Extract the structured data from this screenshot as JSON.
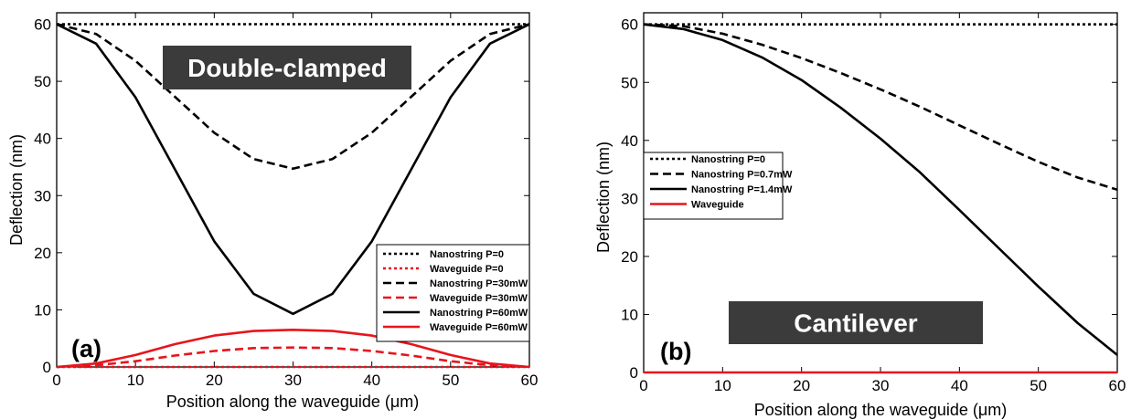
{
  "chart_data": [
    {
      "type": "line",
      "panel_label": "(a)",
      "banner": "Double-clamped",
      "xlabel": "Position along the waveguide (μm)",
      "ylabel": "Deflection (nm)",
      "xlim": [
        0,
        60
      ],
      "ylim": [
        0,
        62
      ],
      "xticks": [
        0,
        10,
        20,
        30,
        40,
        50,
        60
      ],
      "yticks": [
        0,
        10,
        20,
        30,
        40,
        50,
        60
      ],
      "grid": false,
      "legend_position": "bottom-right",
      "x": [
        0,
        5,
        10,
        15,
        20,
        25,
        30,
        35,
        40,
        45,
        50,
        55,
        60
      ],
      "series": [
        {
          "name": "Nanostring P=0",
          "style": "dotted",
          "color": "#000000",
          "values": [
            60,
            60,
            60,
            60,
            60,
            60,
            60,
            60,
            60,
            60,
            60,
            60,
            60
          ]
        },
        {
          "name": "Waveguide P=0",
          "style": "dotted",
          "color": "#e8141c",
          "values": [
            0,
            0,
            0,
            0,
            0,
            0,
            0,
            0,
            0,
            0,
            0,
            0,
            0
          ]
        },
        {
          "name": "Nanostring P=30mW",
          "style": "dashed",
          "color": "#000000",
          "values": [
            60,
            58.3,
            53.6,
            47.3,
            41,
            36.4,
            34.7,
            36.4,
            41,
            47.3,
            53.6,
            58.3,
            60
          ]
        },
        {
          "name": "Waveguide P=30mW",
          "style": "dashed",
          "color": "#e8141c",
          "values": [
            0,
            0.3,
            1,
            2,
            2.8,
            3.3,
            3.4,
            3.3,
            2.8,
            2,
            1,
            0.3,
            0
          ]
        },
        {
          "name": "Nanostring P=60mW",
          "style": "solid",
          "color": "#000000",
          "values": [
            60,
            56.6,
            47.2,
            34.6,
            22,
            12.8,
            9.3,
            12.8,
            22,
            34.6,
            47.2,
            56.6,
            60
          ]
        },
        {
          "name": "Waveguide P=60mW",
          "style": "solid",
          "color": "#e8141c",
          "values": [
            0,
            0.6,
            2.1,
            4,
            5.5,
            6.3,
            6.5,
            6.3,
            5.5,
            4,
            2.1,
            0.6,
            0
          ]
        }
      ]
    },
    {
      "type": "line",
      "panel_label": "(b)",
      "banner": "Cantilever",
      "xlabel": "Position along the waveguide (μm)",
      "ylabel": "Deflection (nm)",
      "xlim": [
        0,
        60
      ],
      "ylim": [
        0,
        62
      ],
      "xticks": [
        0,
        10,
        20,
        30,
        40,
        50,
        60
      ],
      "yticks": [
        0,
        10,
        20,
        30,
        40,
        50,
        60
      ],
      "grid": false,
      "legend_position": "middle-left",
      "x": [
        0,
        5,
        10,
        15,
        20,
        25,
        30,
        35,
        40,
        45,
        50,
        55,
        60
      ],
      "series": [
        {
          "name": "Nanostring P=0",
          "style": "dotted",
          "color": "#000000",
          "values": [
            60,
            60,
            60,
            60,
            60,
            60,
            60,
            60,
            60,
            60,
            60,
            60,
            60
          ]
        },
        {
          "name": "Nanostring P=0.7mW",
          "style": "dashed",
          "color": "#000000",
          "values": [
            60,
            59.7,
            58.4,
            56.5,
            54.2,
            51.6,
            48.8,
            45.8,
            42.6,
            39.4,
            36.3,
            33.6,
            31.5
          ]
        },
        {
          "name": "Nanostring P=1.4mW",
          "style": "solid",
          "color": "#000000",
          "values": [
            60,
            59.2,
            57.3,
            54.3,
            50.4,
            45.6,
            40.3,
            34.5,
            28,
            21.4,
            14.8,
            8.5,
            3
          ]
        },
        {
          "name": "Waveguide",
          "style": "solid",
          "color": "#e8141c",
          "values": [
            0,
            0,
            0,
            0,
            0,
            0,
            0,
            0,
            0,
            0,
            0,
            0,
            0
          ]
        }
      ]
    }
  ]
}
